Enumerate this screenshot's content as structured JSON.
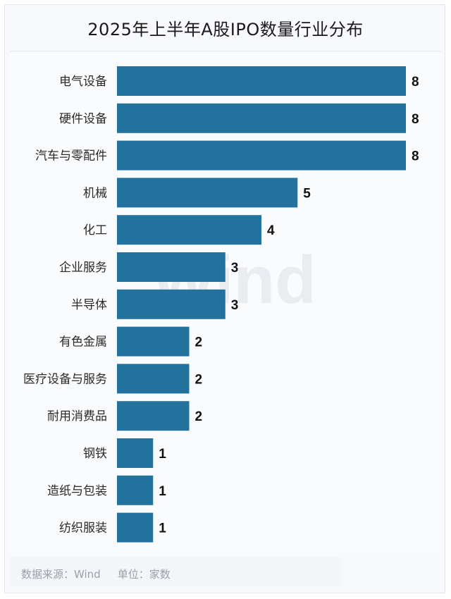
{
  "title": "2025年上半年A股IPO数量行业分布",
  "watermark": "Wind",
  "footer": {
    "source": "数据来源：Wind",
    "unit": "单位：家数"
  },
  "colors": {
    "bar": "#23729e",
    "background": "#f7f9fc"
  },
  "chart_data": {
    "type": "bar",
    "orientation": "horizontal",
    "title": "2025年上半年A股IPO数量行业分布",
    "categories": [
      "电气设备",
      "硬件设备",
      "汽车与零配件",
      "机械",
      "化工",
      "企业服务",
      "半导体",
      "有色金属",
      "医疗设备与服务",
      "耐用消费品",
      "钢铁",
      "造纸与包装",
      "纺织服装"
    ],
    "values": [
      8,
      8,
      8,
      5,
      4,
      3,
      3,
      2,
      2,
      2,
      1,
      1,
      1
    ],
    "xlim": [
      0,
      8
    ],
    "grid": false,
    "data_labels": true
  }
}
